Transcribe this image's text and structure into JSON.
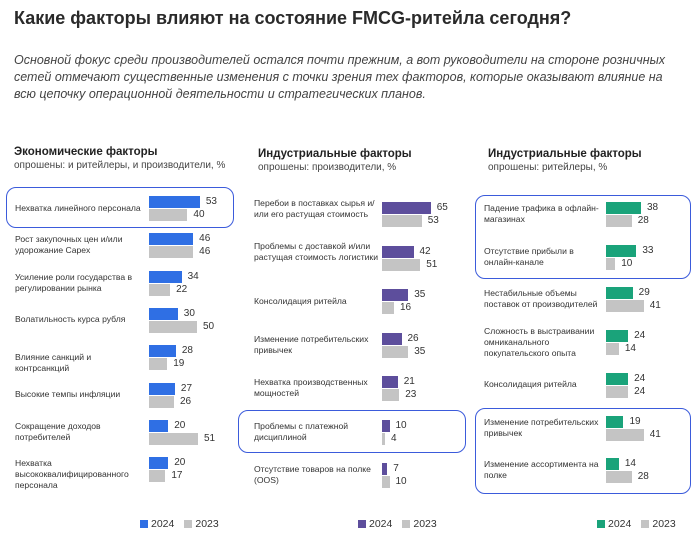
{
  "header": {
    "title": "Какие факторы влияют на состояние FMCG-ритейла сегодня?",
    "subtitle": "Основной фокус среди производителей остался почти прежним, а вот руководители на стороне розничных сетей отмечают существенные изменения с точки зрения тех факторов, которые оказывают влияние на всю цепочку операционной деятельности и стратегических планов."
  },
  "legend": {
    "y2024": "2024",
    "y2023": "2023"
  },
  "colors": {
    "c2023": "#c4c4c4",
    "blue": "#2f6fe4",
    "purple": "#5d4e9c",
    "green": "#1aa37a",
    "highlight": "#3b5bdb"
  },
  "chart_data": [
    {
      "type": "bar",
      "title": "Экономические факторы",
      "subtitle": "опрошены: и ритейлеры, и производители, %",
      "categories": [
        "Нехватка линейного персонала",
        "Рост закупочных цен и/или удорожание Capex",
        "Усиление роли государства в регулировании рынка",
        "Волатильность курса рубля",
        "Влияние санкций и контрсанкций",
        "Высокие темпы инфляции",
        "Сокращение доходов потребителей",
        "Нехватка высококвалифицированного персонала"
      ],
      "series": [
        {
          "name": "2024",
          "values": [
            53,
            46,
            34,
            30,
            28,
            27,
            20,
            20
          ]
        },
        {
          "name": "2023",
          "values": [
            40,
            46,
            22,
            50,
            19,
            26,
            51,
            17
          ]
        }
      ],
      "highlighted": [
        "Нехватка линейного персонала"
      ]
    },
    {
      "type": "bar",
      "title": "Индустриальные факторы",
      "subtitle": "опрошены: производители, %",
      "categories": [
        "Перебои в поставках сырья и/или его растущая стоимость",
        "Проблемы с доставкой и/или растущая стоимость логистики",
        "Консолидация ритейла",
        "Изменение потребительских привычек",
        "Нехватка производственных мощностей",
        "Проблемы с платежной дисциплиной",
        "Отсутствие товаров на полке (OOS)"
      ],
      "series": [
        {
          "name": "2024",
          "values": [
            65,
            42,
            35,
            26,
            21,
            10,
            7
          ]
        },
        {
          "name": "2023",
          "values": [
            53,
            51,
            16,
            35,
            23,
            4,
            10
          ]
        }
      ],
      "highlighted": [
        "Проблемы с платежной дисциплиной"
      ]
    },
    {
      "type": "bar",
      "title": "Индустриальные факторы",
      "subtitle": "опрошены: ритейлеры, %",
      "categories": [
        "Падение трафика в офлайн-магазинах",
        "Отсутствие прибыли в онлайн-канале",
        "Нестабильные объемы поставок от производителей",
        "Сложность в выстраивании омниканального покупательского опыта",
        "Консолидация ритейла",
        "Изменение потребительских привычек",
        "Изменение ассортимента на полке"
      ],
      "series": [
        {
          "name": "2024",
          "values": [
            38,
            33,
            29,
            24,
            24,
            19,
            14
          ]
        },
        {
          "name": "2023",
          "values": [
            28,
            10,
            41,
            14,
            24,
            41,
            28
          ]
        }
      ],
      "highlighted": [
        "Падение трафика в офлайн-магазинах",
        "Отсутствие прибыли в онлайн-канале",
        "Изменение потребительских привычек",
        "Изменение ассортимента на полке"
      ]
    }
  ]
}
